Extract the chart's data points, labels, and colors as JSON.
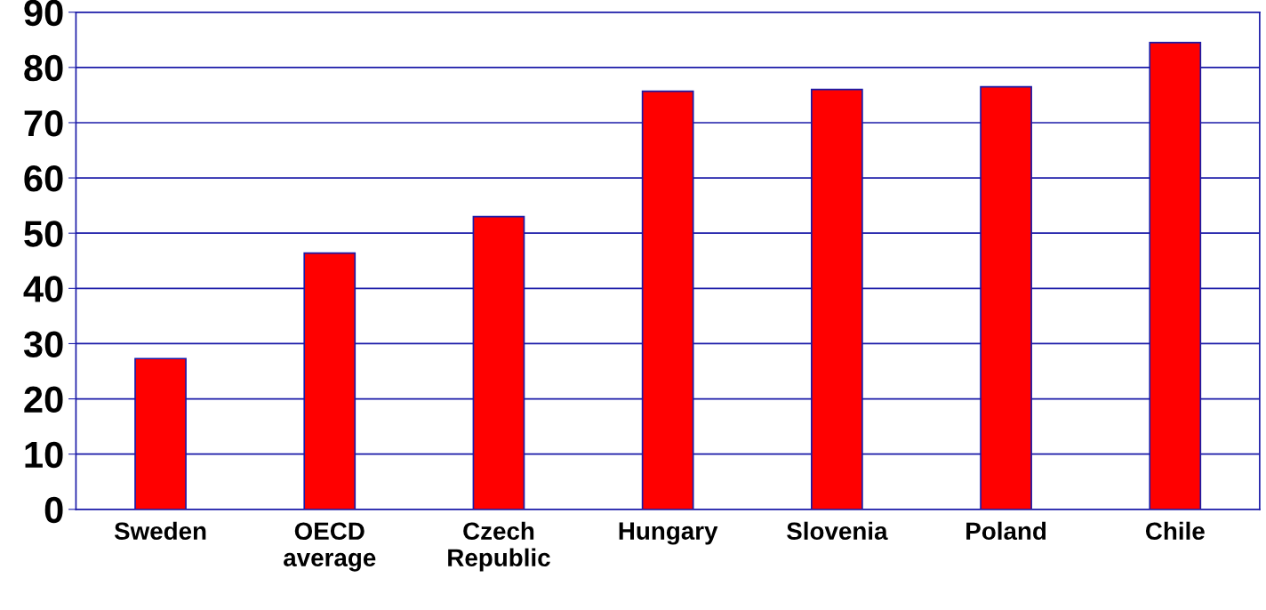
{
  "chart_data": {
    "type": "bar",
    "categories": [
      "Sweden",
      "OECD\naverage",
      "Czech\nRepublic",
      "Hungary",
      "Slovenia",
      "Poland",
      "Chile"
    ],
    "series": [
      {
        "color": "#ff0000",
        "values": [
          27.3,
          46.4,
          53,
          75.7,
          76,
          76.5,
          84.5
        ]
      }
    ],
    "ylim": [
      0,
      90
    ],
    "yticks": [
      0,
      10,
      20,
      30,
      40,
      50,
      60,
      70,
      80,
      90
    ],
    "grid": "y"
  }
}
